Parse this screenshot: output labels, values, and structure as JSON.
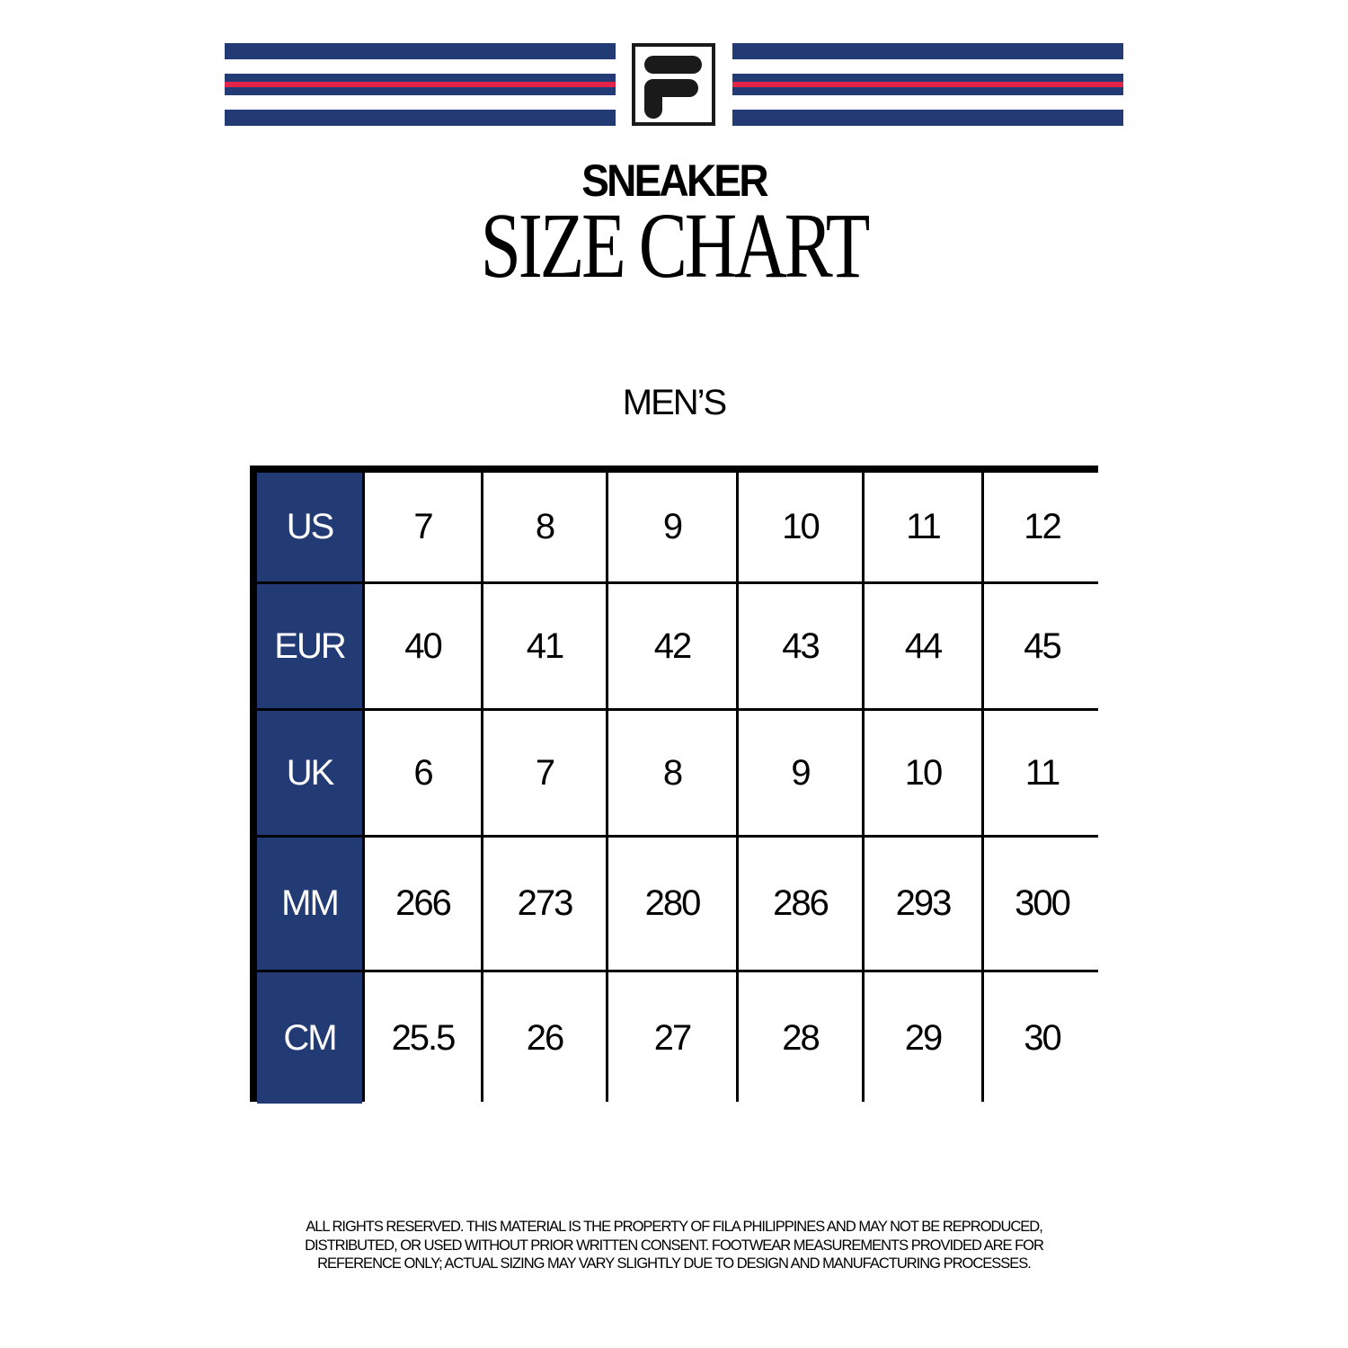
{
  "brand": {
    "name": "FILA",
    "colors": {
      "navy": "#233b75",
      "red": "#e2234a",
      "black": "#1a1a1a"
    }
  },
  "title": {
    "line1": "SNEAKER",
    "line2": "SIZE CHART"
  },
  "section": "MEN’S",
  "table": {
    "rows": [
      {
        "label": "US",
        "values": [
          "7",
          "8",
          "9",
          "10",
          "11",
          "12"
        ]
      },
      {
        "label": "EUR",
        "values": [
          "40",
          "41",
          "42",
          "43",
          "44",
          "45"
        ]
      },
      {
        "label": "UK",
        "values": [
          "6",
          "7",
          "8",
          "9",
          "10",
          "11"
        ]
      },
      {
        "label": "MM",
        "values": [
          "266",
          "273",
          "280",
          "286",
          "293",
          "300"
        ]
      },
      {
        "label": "CM",
        "values": [
          "25.5",
          "26",
          "27",
          "28",
          "29",
          "30"
        ]
      }
    ]
  },
  "footer": {
    "lines": [
      "ALL RIGHTS RESERVED. THIS MATERIAL IS THE PROPERTY OF FILA PHILIPPINES AND MAY NOT BE REPRODUCED,",
      "DISTRIBUTED, OR USED WITHOUT PRIOR WRITTEN CONSENT. FOOTWEAR MEASUREMENTS PROVIDED ARE FOR",
      "REFERENCE ONLY; ACTUAL SIZING MAY VARY SLIGHTLY DUE TO DESIGN AND MANUFACTURING PROCESSES."
    ]
  }
}
